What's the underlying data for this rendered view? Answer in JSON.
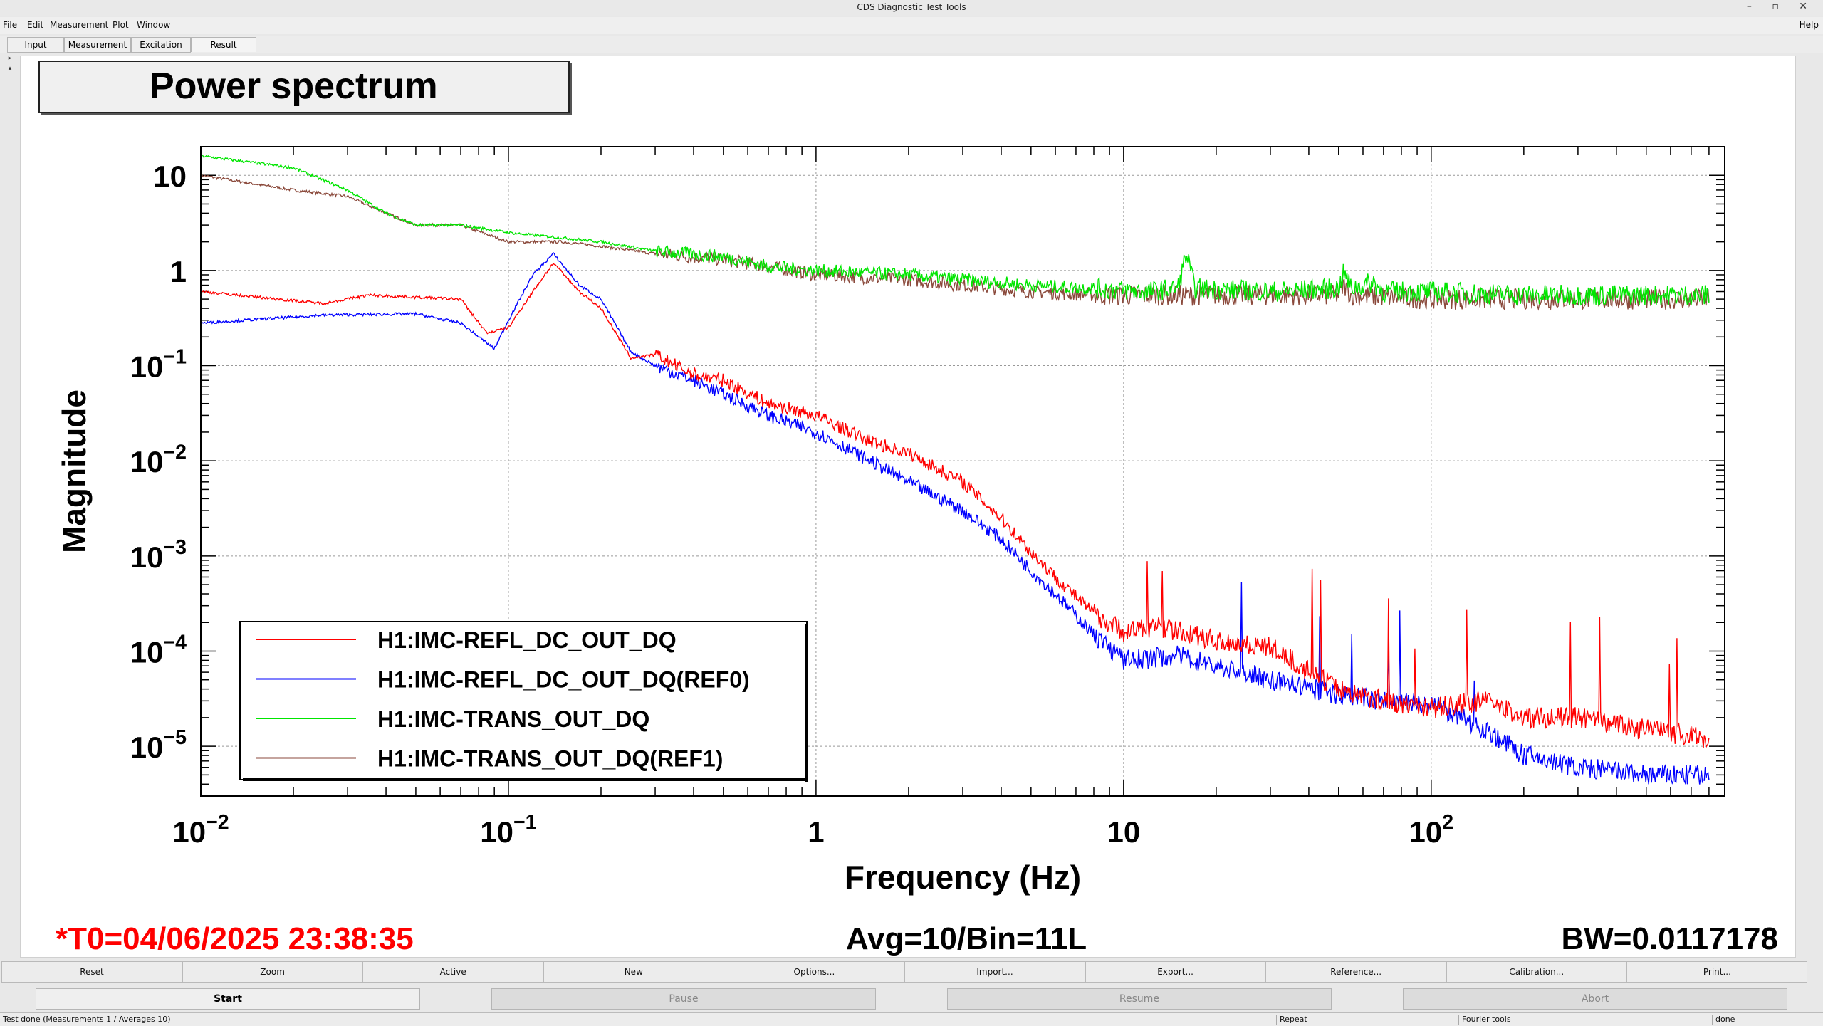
{
  "window": {
    "title": "CDS Diagnostic Test Tools",
    "controls": "– ▫ ✕"
  },
  "menubar": {
    "items": [
      "File",
      "Edit",
      "Measurement",
      "Plot",
      "Window"
    ],
    "help": "Help"
  },
  "tabs": [
    "Input",
    "Measurement",
    "Excitation",
    "Result"
  ],
  "selected_tab": "Result",
  "plot": {
    "title": "Power spectrum",
    "info_left": "*T0=04/06/2025 23:38:35",
    "info_center": "Avg=10/Bin=11L",
    "info_right": "BW=0.0117178"
  },
  "bottom_buttons": [
    "Reset",
    "Zoom",
    "Active",
    "New",
    "Options...",
    "Import...",
    "Export...",
    "Reference...",
    "Calibration...",
    "Print..."
  ],
  "controls": [
    {
      "label": "Start",
      "enabled": true
    },
    {
      "label": "Pause",
      "enabled": false
    },
    {
      "label": "Resume",
      "enabled": false
    },
    {
      "label": "Abort",
      "enabled": false
    }
  ],
  "status": {
    "left": "Test done (Measurements 1 / Averages 10)",
    "repeat": "Repeat",
    "fourier": "Fourier tools",
    "done": "done"
  },
  "colors": {
    "red": "#ff0000",
    "blue": "#0000ff",
    "green": "#00e600",
    "brown": "#8b4a3c",
    "info_left": "#ff0000"
  },
  "chart_data": {
    "type": "line",
    "xlabel": "Frequency (Hz)",
    "ylabel": "Magnitude",
    "xscale": "log",
    "yscale": "log",
    "xlim": [
      0.01,
      900
    ],
    "ylim": [
      3e-06,
      20
    ],
    "x_ticks": [
      "10^-2",
      "10^-1",
      "1",
      "10",
      "10^2"
    ],
    "y_ticks": [
      "10^-5",
      "10^-4",
      "10^-3",
      "10^-2",
      "10^-1",
      "1",
      "10"
    ],
    "grid": true,
    "legend_position": "bottom-left",
    "series": [
      {
        "name": "H1:IMC-REFL_DC_OUT_DQ",
        "color": "#ff0000",
        "points": [
          [
            0.01,
            0.6
          ],
          [
            0.025,
            0.45
          ],
          [
            0.035,
            0.55
          ],
          [
            0.07,
            0.5
          ],
          [
            0.085,
            0.22
          ],
          [
            0.1,
            0.25
          ],
          [
            0.12,
            0.6
          ],
          [
            0.14,
            1.2
          ],
          [
            0.17,
            0.6
          ],
          [
            0.2,
            0.4
          ],
          [
            0.25,
            0.12
          ],
          [
            0.3,
            0.13
          ],
          [
            0.4,
            0.08
          ],
          [
            0.5,
            0.07
          ],
          [
            0.7,
            0.04
          ],
          [
            1,
            0.03
          ],
          [
            1.5,
            0.016
          ],
          [
            2,
            0.012
          ],
          [
            3,
            0.006
          ],
          [
            4,
            0.0025
          ],
          [
            5,
            0.0011
          ],
          [
            6,
            0.0006
          ],
          [
            8,
            0.00025
          ],
          [
            10,
            0.00016
          ],
          [
            13,
            0.00018
          ],
          [
            20,
            0.00013
          ],
          [
            30,
            0.00011
          ],
          [
            50,
            4e-05
          ],
          [
            70,
            3e-05
          ],
          [
            100,
            2.5e-05
          ],
          [
            150,
            3e-05
          ],
          [
            200,
            2e-05
          ],
          [
            300,
            2e-05
          ],
          [
            500,
            1.5e-05
          ],
          [
            800,
            1.2e-05
          ]
        ]
      },
      {
        "name": "H1:IMC-REFL_DC_OUT_DQ(REF0)",
        "color": "#0000ff",
        "points": [
          [
            0.01,
            0.28
          ],
          [
            0.025,
            0.34
          ],
          [
            0.05,
            0.35
          ],
          [
            0.07,
            0.28
          ],
          [
            0.09,
            0.15
          ],
          [
            0.1,
            0.3
          ],
          [
            0.12,
            0.9
          ],
          [
            0.14,
            1.5
          ],
          [
            0.17,
            0.7
          ],
          [
            0.2,
            0.5
          ],
          [
            0.25,
            0.14
          ],
          [
            0.3,
            0.1
          ],
          [
            0.4,
            0.07
          ],
          [
            0.5,
            0.05
          ],
          [
            0.7,
            0.03
          ],
          [
            1,
            0.02
          ],
          [
            1.5,
            0.01
          ],
          [
            2,
            0.006
          ],
          [
            3,
            0.003
          ],
          [
            4,
            0.0015
          ],
          [
            5,
            0.0007
          ],
          [
            6,
            0.0004
          ],
          [
            8,
            0.00015
          ],
          [
            10,
            8e-05
          ],
          [
            15,
            9e-05
          ],
          [
            20,
            7e-05
          ],
          [
            30,
            5e-05
          ],
          [
            50,
            3.5e-05
          ],
          [
            70,
            3e-05
          ],
          [
            100,
            2.8e-05
          ],
          [
            150,
            1.5e-05
          ],
          [
            200,
            8e-06
          ],
          [
            300,
            6e-06
          ],
          [
            500,
            5e-06
          ],
          [
            800,
            5e-06
          ]
        ]
      },
      {
        "name": "H1:IMC-TRANS_OUT_DQ",
        "color": "#00e600",
        "points": [
          [
            0.01,
            16
          ],
          [
            0.02,
            12
          ],
          [
            0.03,
            7
          ],
          [
            0.04,
            4
          ],
          [
            0.05,
            3
          ],
          [
            0.07,
            3
          ],
          [
            0.1,
            2.5
          ],
          [
            0.15,
            2.2
          ],
          [
            0.2,
            2
          ],
          [
            0.3,
            1.6
          ],
          [
            0.5,
            1.4
          ],
          [
            0.7,
            1.1
          ],
          [
            1,
            1
          ],
          [
            2,
            0.9
          ],
          [
            3,
            0.8
          ],
          [
            5,
            0.7
          ],
          [
            8,
            0.65
          ],
          [
            12,
            0.6
          ],
          [
            15,
            0.65
          ],
          [
            16,
            1.5
          ],
          [
            17,
            0.65
          ],
          [
            30,
            0.6
          ],
          [
            50,
            0.65
          ],
          [
            52,
            0.95
          ],
          [
            55,
            0.65
          ],
          [
            65,
            0.75
          ],
          [
            70,
            0.6
          ],
          [
            100,
            0.6
          ],
          [
            200,
            0.55
          ],
          [
            500,
            0.55
          ],
          [
            800,
            0.55
          ]
        ]
      },
      {
        "name": "H1:IMC-TRANS_OUT_DQ(REF1)",
        "color": "#8b4a3c",
        "points": [
          [
            0.01,
            10
          ],
          [
            0.02,
            7
          ],
          [
            0.03,
            6
          ],
          [
            0.04,
            4
          ],
          [
            0.05,
            3
          ],
          [
            0.07,
            3
          ],
          [
            0.1,
            2
          ],
          [
            0.15,
            2
          ],
          [
            0.2,
            1.8
          ],
          [
            0.3,
            1.5
          ],
          [
            0.5,
            1.3
          ],
          [
            0.7,
            1.1
          ],
          [
            1,
            0.9
          ],
          [
            2,
            0.8
          ],
          [
            3,
            0.7
          ],
          [
            5,
            0.6
          ],
          [
            8,
            0.55
          ],
          [
            12,
            0.55
          ],
          [
            15,
            0.55
          ],
          [
            16,
            0.55
          ],
          [
            20,
            0.55
          ],
          [
            50,
            0.55
          ],
          [
            52,
            0.7
          ],
          [
            55,
            0.55
          ],
          [
            100,
            0.5
          ],
          [
            200,
            0.5
          ],
          [
            500,
            0.5
          ],
          [
            800,
            0.5
          ]
        ]
      }
    ]
  }
}
